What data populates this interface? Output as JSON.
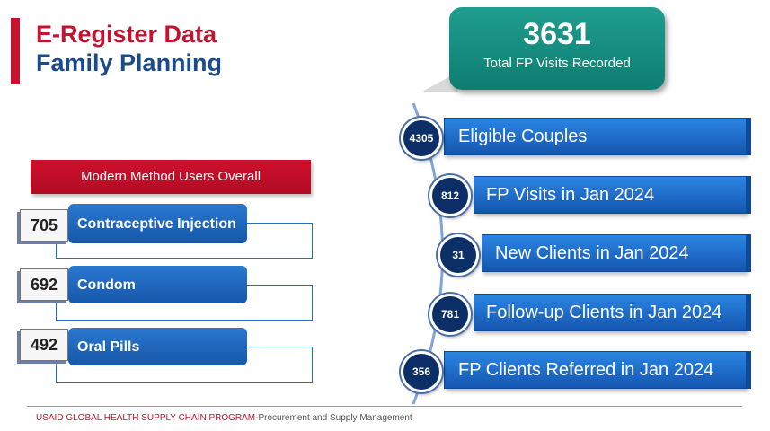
{
  "title": {
    "line1": "E-Register Data",
    "line2": "Family Planning"
  },
  "total": {
    "value": "3631",
    "label": "Total FP Visits Recorded"
  },
  "modern_methods": {
    "header": "Modern Method Users Overall",
    "items": [
      {
        "value": "705",
        "label": "Contraceptive Injection"
      },
      {
        "value": "692",
        "label": "Condom"
      },
      {
        "value": "492",
        "label": "Oral Pills"
      }
    ]
  },
  "stats": [
    {
      "value": "4305",
      "label": "Eligible Couples"
    },
    {
      "value": "812",
      "label": "FP Visits in Jan 2024"
    },
    {
      "value": "31",
      "label": "New Clients in Jan 2024"
    },
    {
      "value": "781",
      "label": "Follow-up Clients in Jan 2024"
    },
    {
      "value": "356",
      "label": "FP Clients Referred in Jan 2024"
    }
  ],
  "footer": {
    "org": "USAID GLOBAL HEALTH SUPPLY CHAIN PROGRAM",
    "sub": "-Procurement and Supply Management"
  },
  "colors": {
    "title_red": "#c4122f",
    "title_blue": "#1a4b8c",
    "total_teal": "#138a7e",
    "bar_blue": "#1f6fc6",
    "circle_navy": "#0b2f66"
  }
}
